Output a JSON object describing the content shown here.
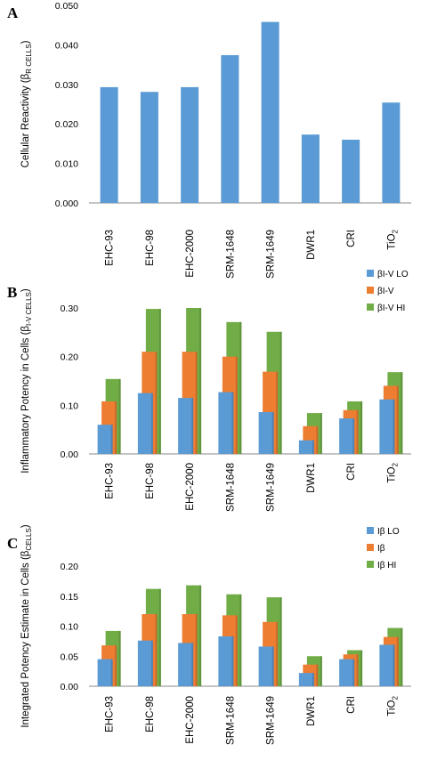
{
  "colors": {
    "blue": "#5B9BD5",
    "orange": "#ED7D31",
    "green": "#70AD47",
    "axis": "#888888"
  },
  "chart_data": [
    {
      "panel": "A",
      "type": "bar",
      "ylabel_main": "Cellular Reactivity (β",
      "ylabel_sub": "R CELLS",
      "ylabel_end": ")",
      "ylim": [
        0,
        0.05
      ],
      "yticks": [
        "0.000",
        "0.010",
        "0.020",
        "0.030",
        "0.040",
        "0.050"
      ],
      "categories": [
        "EHC-93",
        "EHC-98",
        "EHC-2000",
        "SRM-1648",
        "SRM-1649",
        "DWR1",
        "CRI",
        "TiO2"
      ],
      "category_labels": [
        {
          "main": "EHC-93",
          "sub": ""
        },
        {
          "main": "EHC-98",
          "sub": ""
        },
        {
          "main": "EHC-2000",
          "sub": ""
        },
        {
          "main": "SRM-1648",
          "sub": ""
        },
        {
          "main": "SRM-1649",
          "sub": ""
        },
        {
          "main": "DWR1",
          "sub": ""
        },
        {
          "main": "CRI",
          "sub": ""
        },
        {
          "main": "TiO",
          "sub": "2"
        }
      ],
      "series": [
        {
          "values": [
            0.0293,
            0.0281,
            0.0293,
            0.0374,
            0.0458,
            0.0173,
            0.016,
            0.0254
          ]
        }
      ],
      "legend": []
    },
    {
      "panel": "B",
      "type": "bar",
      "ylabel_main": "Inflammatory Potency in Cells (β",
      "ylabel_sub": "I-V CELLS",
      "ylabel_end": ")",
      "ylim": [
        0,
        0.3
      ],
      "yticks": [
        "0.00",
        "0.10",
        "0.20",
        "0.30"
      ],
      "categories": [
        "EHC-93",
        "EHC-98",
        "EHC-2000",
        "SRM-1648",
        "SRM-1649",
        "DWR1",
        "CRI",
        "TiO2"
      ],
      "category_labels": [
        {
          "main": "EHC-93",
          "sub": ""
        },
        {
          "main": "EHC-98",
          "sub": ""
        },
        {
          "main": "EHC-2000",
          "sub": ""
        },
        {
          "main": "SRM-1648",
          "sub": ""
        },
        {
          "main": "SRM-1649",
          "sub": ""
        },
        {
          "main": "DWR1",
          "sub": ""
        },
        {
          "main": "CRI",
          "sub": ""
        },
        {
          "main": "TiO",
          "sub": "2"
        }
      ],
      "series": [
        {
          "name": "βI-V LO",
          "values": [
            0.06,
            0.125,
            0.115,
            0.127,
            0.086,
            0.028,
            0.073,
            0.112
          ]
        },
        {
          "name": "βI-V",
          "values": [
            0.108,
            0.21,
            0.21,
            0.2,
            0.169,
            0.057,
            0.09,
            0.14
          ]
        },
        {
          "name": "βI-V HI",
          "values": [
            0.154,
            0.298,
            0.3,
            0.271,
            0.251,
            0.084,
            0.108,
            0.168
          ]
        }
      ],
      "legend": [
        "βI-V LO",
        "βI-V",
        "βI-V HI"
      ]
    },
    {
      "panel": "C",
      "type": "bar",
      "ylabel_main": "Integrated Potency Estimate in Cells (β",
      "ylabel_sub": "CELLS",
      "ylabel_end": ")",
      "ylim": [
        0,
        0.2
      ],
      "yticks": [
        "0.00",
        "0.05",
        "0.10",
        "0.15",
        "0.20"
      ],
      "categories": [
        "EHC-93",
        "EHC-98",
        "EHC-2000",
        "SRM-1648",
        "SRM-1649",
        "DWR1",
        "CRI",
        "TiO2"
      ],
      "category_labels": [
        {
          "main": "EHC-93",
          "sub": ""
        },
        {
          "main": "EHC-98",
          "sub": ""
        },
        {
          "main": "EHC-2000",
          "sub": ""
        },
        {
          "main": "SRM-1648",
          "sub": ""
        },
        {
          "main": "SRM-1649",
          "sub": ""
        },
        {
          "main": "DWR1",
          "sub": ""
        },
        {
          "main": "CRI",
          "sub": ""
        },
        {
          "main": "TiO",
          "sub": "2"
        }
      ],
      "series": [
        {
          "name": "Iβ LO",
          "values": [
            0.045,
            0.076,
            0.072,
            0.083,
            0.066,
            0.022,
            0.045,
            0.069
          ]
        },
        {
          "name": "Iβ",
          "values": [
            0.068,
            0.12,
            0.12,
            0.118,
            0.107,
            0.036,
            0.053,
            0.082
          ]
        },
        {
          "name": "Iβ HI",
          "values": [
            0.092,
            0.162,
            0.168,
            0.153,
            0.148,
            0.05,
            0.06,
            0.097
          ]
        }
      ],
      "legend": [
        "Iβ LO",
        "Iβ",
        "Iβ HI"
      ]
    }
  ]
}
